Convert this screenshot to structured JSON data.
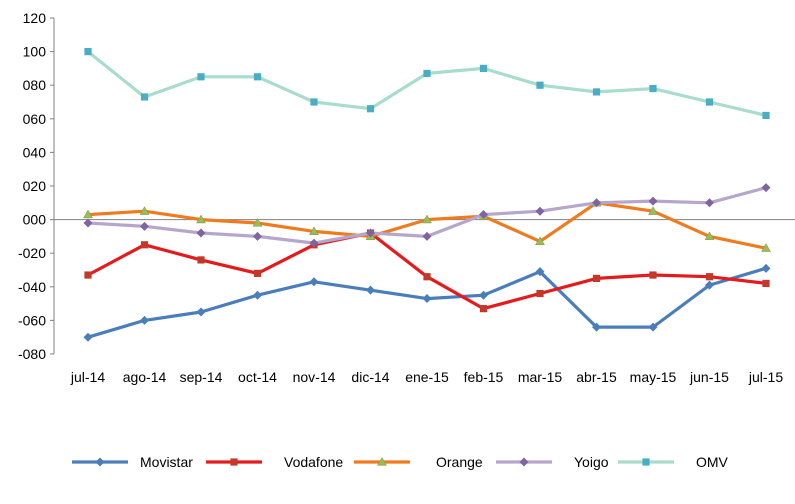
{
  "chart_data": {
    "type": "line",
    "title": "",
    "xlabel": "",
    "ylabel": "",
    "x": [
      "jul-14",
      "ago-14",
      "sep-14",
      "oct-14",
      "nov-14",
      "dic-14",
      "ene-15",
      "feb-15",
      "mar-15",
      "abr-15",
      "may-15",
      "jun-15",
      "jul-15"
    ],
    "ylim": [
      -80,
      120
    ],
    "yticks": [
      120,
      100,
      80,
      60,
      40,
      20,
      0,
      -20,
      -40,
      -60,
      -80
    ],
    "ytick_labels": [
      "120",
      "100",
      "080",
      "060",
      "040",
      "020",
      "000",
      "-020",
      "-040",
      "-060",
      "-080"
    ],
    "grid": false,
    "legend": "bottom",
    "series": [
      {
        "name": "Movistar",
        "color": "#4A7EBB",
        "marker": "diamond",
        "values": [
          -70,
          -60,
          -55,
          -45,
          -37,
          -42,
          -47,
          -45,
          -31,
          -64,
          -64,
          -39,
          -29
        ]
      },
      {
        "name": "Vodafone",
        "color": "#E41A1C",
        "marker": "square",
        "values": [
          -33,
          -15,
          -24,
          -32,
          -15,
          -8,
          -34,
          -53,
          -44,
          -35,
          -33,
          -34,
          -38
        ]
      },
      {
        "name": "Orange",
        "color": "#F07A1E",
        "marker": "triangle",
        "values": [
          3,
          5,
          0,
          -2,
          -7,
          -10,
          0,
          2,
          -13,
          10,
          5,
          -10,
          -17
        ]
      },
      {
        "name": "Yoigo",
        "color": "#B7A6CC",
        "marker": "diamond",
        "values": [
          -2,
          -4,
          -8,
          -10,
          -14,
          -8,
          -10,
          3,
          5,
          10,
          11,
          10,
          19
        ]
      },
      {
        "name": "OMV",
        "color": "#A8DCCB",
        "marker": "square",
        "values": [
          100,
          73,
          85,
          85,
          70,
          66,
          87,
          90,
          80,
          76,
          78,
          70,
          62
        ]
      }
    ]
  }
}
